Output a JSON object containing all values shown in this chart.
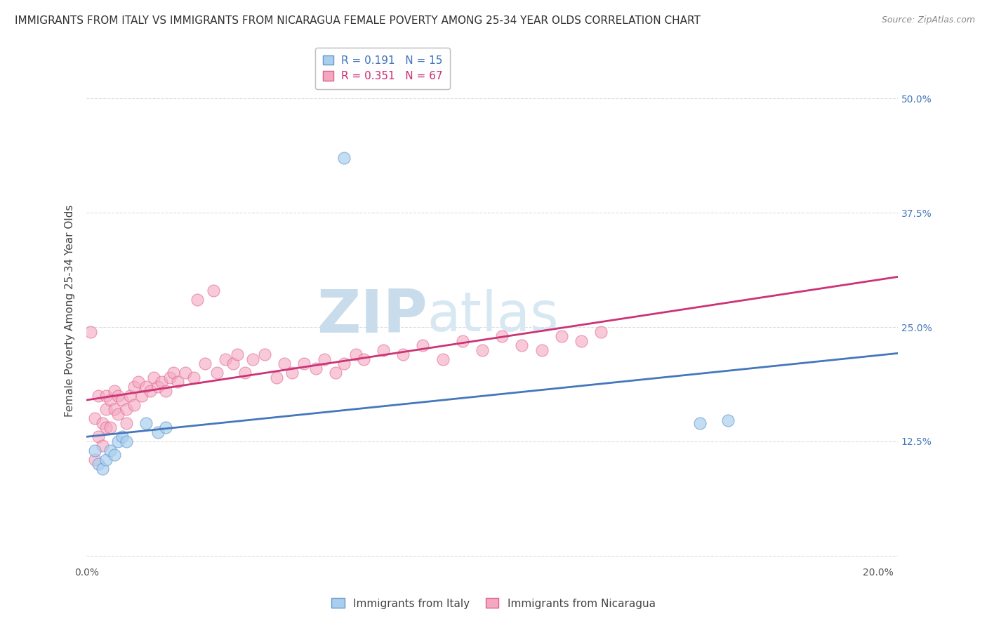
{
  "title": "IMMIGRANTS FROM ITALY VS IMMIGRANTS FROM NICARAGUA FEMALE POVERTY AMONG 25-34 YEAR OLDS CORRELATION CHART",
  "source": "Source: ZipAtlas.com",
  "ylabel": "Female Poverty Among 25-34 Year Olds",
  "xlim": [
    0.0,
    0.205
  ],
  "ylim": [
    -0.01,
    0.545
  ],
  "xticks": [
    0.0,
    0.04,
    0.08,
    0.12,
    0.16,
    0.2
  ],
  "xticklabels": [
    "0.0%",
    "",
    "",
    "",
    "",
    "20.0%"
  ],
  "ytick_positions": [
    0.0,
    0.125,
    0.25,
    0.375,
    0.5
  ],
  "ytick_labels": [
    "",
    "12.5%",
    "25.0%",
    "37.5%",
    "50.0%"
  ],
  "italy_R": "0.191",
  "italy_N": "15",
  "nicaragua_R": "0.351",
  "nicaragua_N": "67",
  "italy_color": "#aacfee",
  "nicaragua_color": "#f4a8c0",
  "italy_edge_color": "#6699cc",
  "nicaragua_edge_color": "#e06090",
  "italy_trend_color": "#4477bb",
  "nicaragua_trend_color": "#cc3377",
  "italy_r_color": "#4477bb",
  "nicaragua_r_color": "#cc3377",
  "watermark_zip_color": "#b8d8ee",
  "watermark_atlas_color": "#c8e0f0",
  "legend_label_italy": "Immigrants from Italy",
  "legend_label_nicaragua": "Immigrants from Nicaragua",
  "grid_color": "#dddddd",
  "background_color": "#ffffff",
  "title_fontsize": 11,
  "axis_label_fontsize": 11,
  "tick_fontsize": 10,
  "legend_fontsize": 11,
  "italy_x": [
    0.002,
    0.003,
    0.004,
    0.005,
    0.006,
    0.007,
    0.008,
    0.009,
    0.01,
    0.015,
    0.018,
    0.02,
    0.065,
    0.155,
    0.162
  ],
  "italy_y": [
    0.115,
    0.1,
    0.095,
    0.105,
    0.115,
    0.11,
    0.125,
    0.13,
    0.125,
    0.145,
    0.135,
    0.14,
    0.435,
    0.145,
    0.148
  ],
  "nicaragua_x": [
    0.001,
    0.002,
    0.002,
    0.003,
    0.003,
    0.004,
    0.004,
    0.005,
    0.005,
    0.005,
    0.006,
    0.006,
    0.007,
    0.007,
    0.008,
    0.008,
    0.009,
    0.01,
    0.01,
    0.011,
    0.012,
    0.012,
    0.013,
    0.014,
    0.015,
    0.016,
    0.017,
    0.018,
    0.019,
    0.02,
    0.021,
    0.022,
    0.023,
    0.025,
    0.027,
    0.028,
    0.03,
    0.032,
    0.033,
    0.035,
    0.037,
    0.038,
    0.04,
    0.042,
    0.045,
    0.048,
    0.05,
    0.052,
    0.055,
    0.058,
    0.06,
    0.063,
    0.065,
    0.068,
    0.07,
    0.075,
    0.08,
    0.085,
    0.09,
    0.095,
    0.1,
    0.105,
    0.11,
    0.115,
    0.12,
    0.125,
    0.13
  ],
  "nicaragua_y": [
    0.245,
    0.15,
    0.105,
    0.175,
    0.13,
    0.145,
    0.12,
    0.16,
    0.14,
    0.175,
    0.17,
    0.14,
    0.18,
    0.16,
    0.175,
    0.155,
    0.17,
    0.16,
    0.145,
    0.175,
    0.185,
    0.165,
    0.19,
    0.175,
    0.185,
    0.18,
    0.195,
    0.185,
    0.19,
    0.18,
    0.195,
    0.2,
    0.19,
    0.2,
    0.195,
    0.28,
    0.21,
    0.29,
    0.2,
    0.215,
    0.21,
    0.22,
    0.2,
    0.215,
    0.22,
    0.195,
    0.21,
    0.2,
    0.21,
    0.205,
    0.215,
    0.2,
    0.21,
    0.22,
    0.215,
    0.225,
    0.22,
    0.23,
    0.215,
    0.235,
    0.225,
    0.24,
    0.23,
    0.225,
    0.24,
    0.235,
    0.245
  ]
}
